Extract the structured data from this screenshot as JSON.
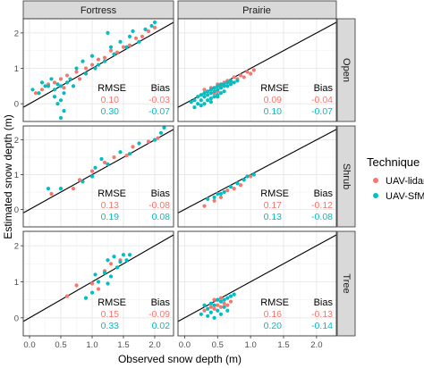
{
  "chart_data": {
    "type": "scatter",
    "xlabel": "Observed snow depth (m)",
    "ylabel": "Estimated snow depth (m)",
    "xlim": [
      -0.1,
      2.3
    ],
    "ylim": [
      -0.5,
      2.4
    ],
    "x_ticks": [
      "0.0",
      "0.5",
      "1.0",
      "1.5",
      "2.0"
    ],
    "y_ticks": [
      "0",
      "1",
      "2"
    ],
    "grid": true,
    "reference_line": "1:1",
    "columns": [
      "Fortress",
      "Prairie"
    ],
    "rows": [
      "Open",
      "Shrub",
      "Tree"
    ],
    "legend": {
      "title": "Technique",
      "position": "right",
      "entries": [
        {
          "label": "UAV-lidar",
          "color": "#F8766D"
        },
        {
          "label": "UAV-SfM",
          "color": "#00BFC4"
        }
      ]
    },
    "stats_header": [
      "RMSE",
      "Bias"
    ],
    "panels": [
      {
        "site": "Fortress",
        "cover": "Open",
        "stats": [
          [
            "0.10",
            "-0.03"
          ],
          [
            "0.30",
            "-0.07"
          ]
        ],
        "series": [
          {
            "name": "UAV-lidar",
            "points": [
              [
                0.1,
                0.3
              ],
              [
                0.2,
                0.4
              ],
              [
                0.3,
                0.55
              ],
              [
                0.4,
                0.6
              ],
              [
                0.5,
                0.7
              ],
              [
                0.55,
                0.45
              ],
              [
                0.6,
                0.8
              ],
              [
                0.75,
                0.9
              ],
              [
                0.8,
                0.7
              ],
              [
                0.9,
                1.0
              ],
              [
                1.0,
                1.1
              ],
              [
                1.1,
                1.25
              ],
              [
                1.2,
                1.3
              ],
              [
                1.3,
                1.5
              ],
              [
                1.4,
                1.45
              ],
              [
                1.5,
                1.6
              ],
              [
                1.6,
                1.65
              ],
              [
                1.7,
                1.85
              ],
              [
                1.8,
                1.9
              ],
              [
                1.9,
                2.05
              ],
              [
                2.0,
                2.15
              ]
            ]
          },
          {
            "name": "UAV-SfM",
            "points": [
              [
                0.05,
                0.4
              ],
              [
                0.15,
                0.3
              ],
              [
                0.2,
                0.6
              ],
              [
                0.25,
                0.5
              ],
              [
                0.3,
                0.5
              ],
              [
                0.35,
                0.7
              ],
              [
                0.4,
                0.4
              ],
              [
                0.45,
                0.55
              ],
              [
                0.5,
                0.5
              ],
              [
                0.5,
                0.1
              ],
              [
                0.55,
                0.3
              ],
              [
                0.6,
                0.6
              ],
              [
                0.65,
                0.7
              ],
              [
                0.7,
                0.5
              ],
              [
                0.75,
                1.0
              ],
              [
                0.85,
                1.2
              ],
              [
                0.9,
                0.85
              ],
              [
                1.0,
                1.35
              ],
              [
                1.05,
                1.0
              ],
              [
                1.1,
                1.1
              ],
              [
                1.2,
                1.2
              ],
              [
                1.3,
                1.6
              ],
              [
                1.35,
                1.4
              ],
              [
                1.45,
                1.75
              ],
              [
                1.55,
                1.6
              ],
              [
                1.6,
                1.9
              ],
              [
                1.65,
                2.05
              ],
              [
                1.75,
                1.75
              ],
              [
                1.85,
                2.1
              ],
              [
                1.95,
                2.2
              ],
              [
                2.0,
                2.3
              ],
              [
                0.45,
                0.0
              ],
              [
                0.5,
                -0.4
              ],
              [
                0.55,
                -0.2
              ],
              [
                0.4,
                0.2
              ],
              [
                1.25,
                2.0
              ]
            ]
          }
        ]
      },
      {
        "site": "Prairie",
        "cover": "Open",
        "stats": [
          [
            "0.09",
            "-0.04"
          ],
          [
            "0.10",
            "-0.07"
          ]
        ],
        "series": [
          {
            "name": "UAV-lidar",
            "points": [
              [
                0.3,
                0.4
              ],
              [
                0.4,
                0.45
              ],
              [
                0.5,
                0.55
              ],
              [
                0.55,
                0.5
              ],
              [
                0.6,
                0.6
              ],
              [
                0.65,
                0.65
              ],
              [
                0.7,
                0.6
              ],
              [
                0.75,
                0.75
              ],
              [
                0.8,
                0.7
              ],
              [
                0.85,
                0.8
              ],
              [
                0.9,
                0.75
              ],
              [
                0.95,
                0.9
              ],
              [
                1.0,
                0.85
              ],
              [
                1.05,
                0.95
              ],
              [
                0.45,
                0.3
              ],
              [
                0.5,
                0.35
              ]
            ]
          },
          {
            "name": "UAV-SfM",
            "points": [
              [
                0.1,
                0.05
              ],
              [
                0.15,
                0.1
              ],
              [
                0.2,
                0.2
              ],
              [
                0.25,
                0.1
              ],
              [
                0.25,
                0.25
              ],
              [
                0.3,
                0.2
              ],
              [
                0.3,
                0.3
              ],
              [
                0.35,
                0.25
              ],
              [
                0.35,
                0.35
              ],
              [
                0.4,
                0.3
              ],
              [
                0.4,
                0.4
              ],
              [
                0.45,
                0.35
              ],
              [
                0.45,
                0.45
              ],
              [
                0.5,
                0.4
              ],
              [
                0.5,
                0.5
              ],
              [
                0.55,
                0.45
              ],
              [
                0.55,
                0.55
              ],
              [
                0.6,
                0.5
              ],
              [
                0.6,
                0.55
              ],
              [
                0.65,
                0.5
              ],
              [
                0.65,
                0.6
              ],
              [
                0.7,
                0.55
              ],
              [
                0.7,
                0.65
              ],
              [
                0.75,
                0.6
              ],
              [
                0.8,
                0.65
              ],
              [
                0.2,
                0.0
              ],
              [
                0.3,
                0.0
              ],
              [
                0.35,
                0.1
              ],
              [
                0.4,
                0.15
              ],
              [
                0.45,
                0.2
              ],
              [
                0.5,
                0.25
              ],
              [
                0.55,
                0.3
              ],
              [
                0.6,
                0.35
              ],
              [
                0.15,
                -0.1
              ],
              [
                0.25,
                -0.05
              ],
              [
                0.4,
                0.05
              ],
              [
                0.5,
                0.2
              ]
            ]
          }
        ]
      },
      {
        "site": "Fortress",
        "cover": "Shrub",
        "stats": [
          [
            "0.13",
            "-0.08"
          ],
          [
            "0.19",
            "0.08"
          ]
        ],
        "series": [
          {
            "name": "UAV-lidar",
            "points": [
              [
                0.35,
                0.45
              ],
              [
                0.7,
                0.6
              ],
              [
                0.8,
                0.85
              ],
              [
                1.0,
                1.1
              ],
              [
                1.2,
                1.35
              ],
              [
                1.35,
                1.5
              ],
              [
                1.55,
                1.55
              ],
              [
                1.65,
                1.8
              ],
              [
                1.9,
                1.95
              ],
              [
                2.05,
                2.05
              ]
            ]
          },
          {
            "name": "UAV-SfM",
            "points": [
              [
                0.3,
                0.6
              ],
              [
                0.5,
                0.6
              ],
              [
                0.85,
                0.8
              ],
              [
                1.0,
                0.95
              ],
              [
                1.05,
                1.2
              ],
              [
                1.15,
                1.45
              ],
              [
                1.25,
                1.3
              ],
              [
                1.45,
                1.65
              ],
              [
                1.6,
                1.6
              ],
              [
                1.75,
                1.9
              ],
              [
                2.0,
                2.0
              ],
              [
                2.1,
                2.2
              ],
              [
                2.15,
                2.35
              ]
            ]
          }
        ]
      },
      {
        "site": "Prairie",
        "cover": "Shrub",
        "stats": [
          [
            "0.17",
            "-0.12"
          ],
          [
            "0.13",
            "-0.08"
          ]
        ],
        "series": [
          {
            "name": "UAV-lidar",
            "points": [
              [
                0.3,
                0.1
              ],
              [
                0.45,
                0.25
              ],
              [
                0.55,
                0.35
              ],
              [
                0.65,
                0.55
              ],
              [
                0.75,
                0.6
              ],
              [
                0.85,
                0.7
              ],
              [
                1.0,
                0.95
              ]
            ]
          },
          {
            "name": "UAV-SfM",
            "points": [
              [
                0.35,
                0.3
              ],
              [
                0.45,
                0.35
              ],
              [
                0.5,
                0.45
              ],
              [
                0.55,
                0.45
              ],
              [
                0.6,
                0.5
              ],
              [
                0.7,
                0.65
              ],
              [
                0.8,
                0.75
              ],
              [
                0.9,
                0.85
              ],
              [
                0.95,
                0.95
              ],
              [
                1.05,
                1.0
              ]
            ]
          }
        ]
      },
      {
        "site": "Fortress",
        "cover": "Tree",
        "stats": [
          [
            "0.15",
            "-0.09"
          ],
          [
            "0.33",
            "0.02"
          ]
        ],
        "series": [
          {
            "name": "UAV-lidar",
            "points": [
              [
                0.6,
                0.6
              ],
              [
                0.75,
                0.9
              ],
              [
                1.0,
                0.95
              ],
              [
                1.1,
                0.8
              ],
              [
                1.2,
                1.3
              ],
              [
                1.3,
                1.5
              ],
              [
                1.45,
                1.6
              ]
            ]
          },
          {
            "name": "UAV-SfM",
            "points": [
              [
                0.9,
                0.55
              ],
              [
                1.0,
                0.7
              ],
              [
                1.05,
                1.2
              ],
              [
                1.1,
                1.0
              ],
              [
                1.2,
                1.25
              ],
              [
                1.25,
                1.6
              ],
              [
                1.3,
                1.15
              ],
              [
                1.35,
                1.7
              ],
              [
                1.4,
                1.4
              ],
              [
                1.45,
                1.55
              ],
              [
                1.5,
                1.75
              ],
              [
                1.55,
                1.6
              ],
              [
                1.6,
                1.75
              ],
              [
                1.25,
                0.95
              ]
            ]
          }
        ]
      },
      {
        "site": "Prairie",
        "cover": "Tree",
        "stats": [
          [
            "0.16",
            "-0.13"
          ],
          [
            "0.20",
            "-0.14"
          ]
        ],
        "series": [
          {
            "name": "UAV-lidar",
            "points": [
              [
                0.3,
                0.2
              ],
              [
                0.4,
                0.3
              ],
              [
                0.45,
                0.25
              ],
              [
                0.5,
                0.35
              ],
              [
                0.55,
                0.3
              ],
              [
                0.6,
                0.4
              ],
              [
                0.65,
                0.35
              ],
              [
                0.7,
                0.45
              ],
              [
                0.45,
                0.5
              ],
              [
                0.55,
                0.55
              ]
            ]
          },
          {
            "name": "UAV-SfM",
            "points": [
              [
                0.25,
                0.1
              ],
              [
                0.3,
                0.35
              ],
              [
                0.35,
                0.25
              ],
              [
                0.4,
                0.4
              ],
              [
                0.45,
                0.35
              ],
              [
                0.5,
                0.5
              ],
              [
                0.55,
                0.45
              ],
              [
                0.6,
                0.5
              ],
              [
                0.65,
                0.55
              ],
              [
                0.7,
                0.6
              ],
              [
                0.75,
                0.65
              ],
              [
                0.4,
                0.15
              ],
              [
                0.5,
                0.2
              ],
              [
                0.6,
                0.3
              ],
              [
                0.35,
                0.05
              ],
              [
                0.45,
                0.0
              ],
              [
                0.55,
                0.1
              ],
              [
                0.65,
                0.2
              ]
            ]
          }
        ]
      }
    ]
  }
}
